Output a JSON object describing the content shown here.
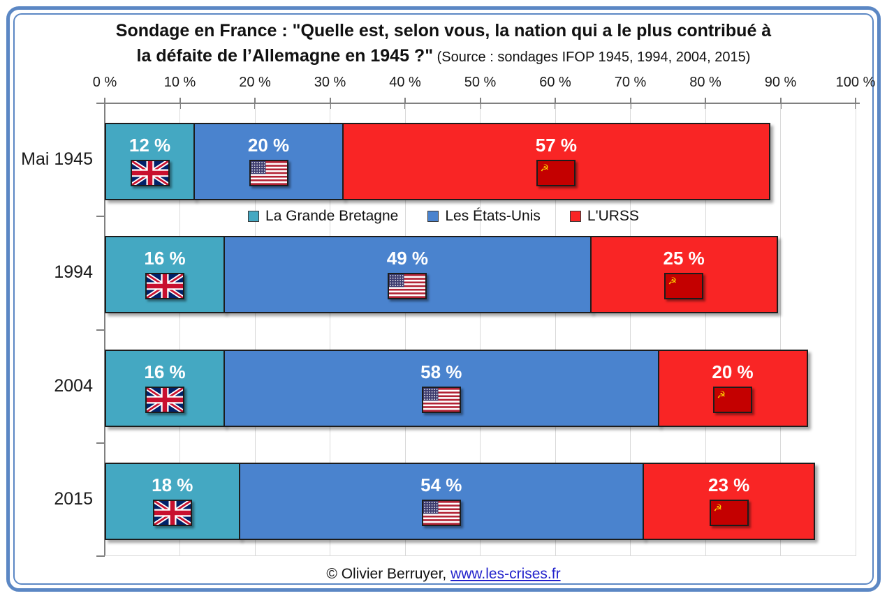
{
  "frame": {
    "accent_color": "#5b87c4"
  },
  "title": {
    "line1": "Sondage en France : \"Quelle est, selon vous, la nation qui a le plus contribué à",
    "line2_bold": "la défaite de l’Allemagne en 1945 ?\"",
    "line2_source": " (Source : sondages IFOP 1945, 1994, 2004, 2015)"
  },
  "footer": {
    "copyright": "© Olivier Berruyer, ",
    "link_text": "www.les-crises.fr"
  },
  "chart_data": {
    "type": "bar",
    "orientation": "horizontal-stacked",
    "title": "Sondage en France : \"Quelle est, selon vous, la nation qui a le plus contribué à la défaite de l’Allemagne en 1945 ?\"",
    "subtitle": "(Source : sondages IFOP 1945, 1994, 2004, 2015)",
    "categories": [
      "Mai 1945",
      "1994",
      "2004",
      "2015"
    ],
    "series": [
      {
        "name": "La Grande Bretagne",
        "color": "#44A8C2",
        "flag_icon": "uk-flag-icon",
        "flag": "uk",
        "values": [
          12,
          16,
          16,
          18
        ]
      },
      {
        "name": "Les États-Unis",
        "color": "#4A83CE",
        "flag_icon": "us-flag-icon",
        "flag": "us",
        "values": [
          20,
          49,
          58,
          54
        ]
      },
      {
        "name": "L'URSS",
        "color": "#F92525",
        "flag_icon": "ussr-flag-icon",
        "flag": "ussr",
        "values": [
          57,
          25,
          20,
          23
        ]
      }
    ],
    "x_tick_labels": [
      "0 %",
      "10 %",
      "20 %",
      "30 %",
      "40 %",
      "50 %",
      "60 %",
      "70 %",
      "80 %",
      "90 %",
      "100 %"
    ],
    "xlim": [
      0,
      100
    ],
    "value_suffix": " %",
    "grid": "vertical-every-10pct",
    "legend_position": "floating-between-row1-and-row2",
    "axis_color": "#808080",
    "grid_color": "#d9d9d9"
  }
}
